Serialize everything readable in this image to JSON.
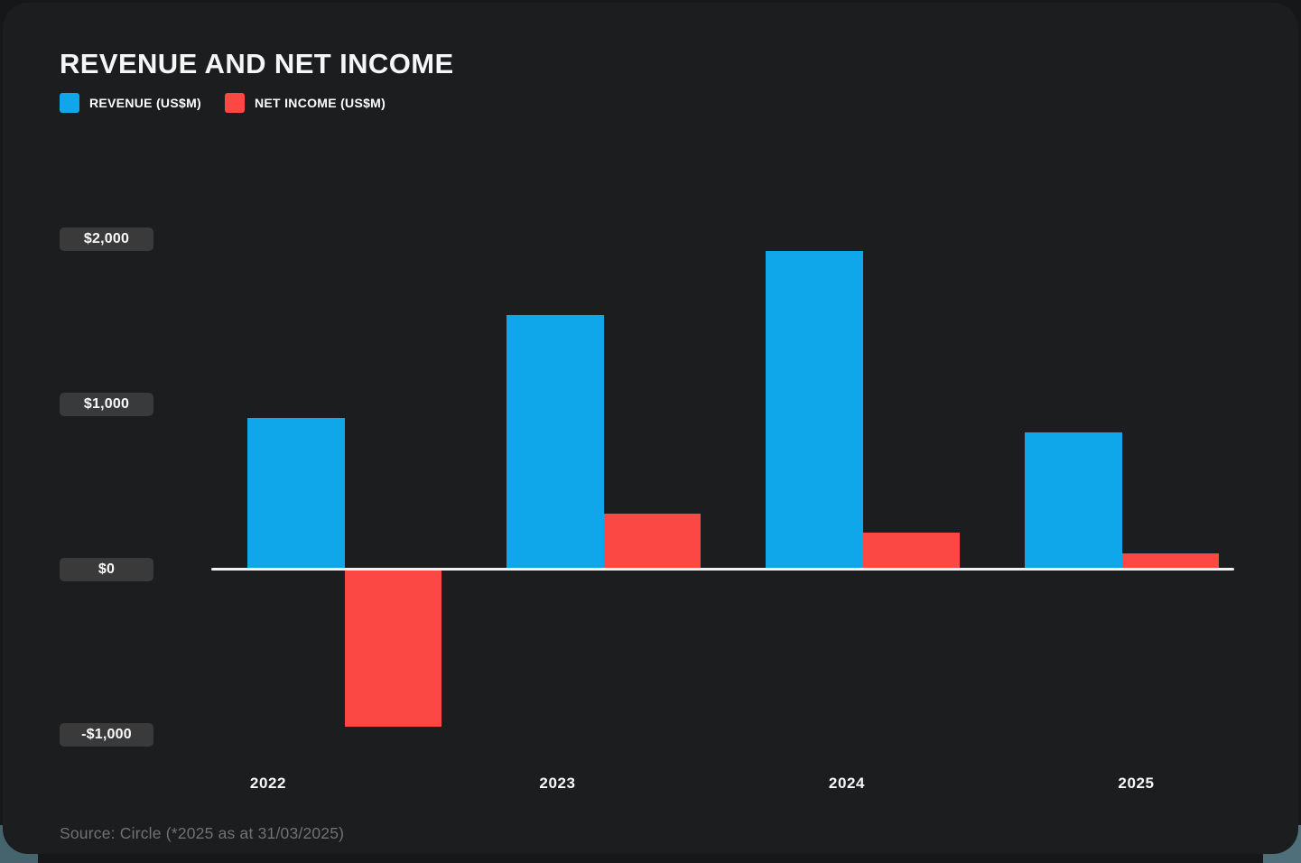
{
  "page": {
    "title": "REVENUE AND NET INCOME",
    "source_note": "Source: Circle (*2025 as at 31/03/2025)"
  },
  "legend": [
    {
      "label": "REVENUE (US$M)",
      "color": "#0fa7e9"
    },
    {
      "label": "NET INCOME (US$M)",
      "color": "#fc4845"
    }
  ],
  "chart_data": {
    "type": "bar",
    "title": "REVENUE AND NET INCOME",
    "categories": [
      "2022",
      "2023",
      "2024",
      "2025"
    ],
    "series": [
      {
        "name": "REVENUE (US$M)",
        "color": "#0fa7e9",
        "values": [
          910,
          1535,
          1920,
          820
        ]
      },
      {
        "name": "NET INCOME (US$M)",
        "color": "#fc4845",
        "values": [
          -945,
          330,
          215,
          85
        ]
      }
    ],
    "y_ticks": [
      {
        "value": 2000,
        "label": "$2,000"
      },
      {
        "value": 1000,
        "label": "$1,000"
      },
      {
        "value": 0,
        "label": "$0"
      },
      {
        "value": -1000,
        "label": "-$1,000"
      }
    ],
    "ylim": [
      -1000,
      2000
    ],
    "xlabel": "",
    "ylabel": "US$M",
    "grid": false,
    "legend_position": "top-left",
    "baseline_color": "#f2f2f2",
    "source": "Source: Circle (*2025 as at 31/03/2025)"
  },
  "colors": {
    "card_background": "#1c1d1e",
    "page_background": "#161718",
    "tick_pill_background": "#3a3a3a",
    "title_text": "#f5f6f6",
    "axis_label_text": "#f7f7f7",
    "source_text": "#6e7374"
  }
}
